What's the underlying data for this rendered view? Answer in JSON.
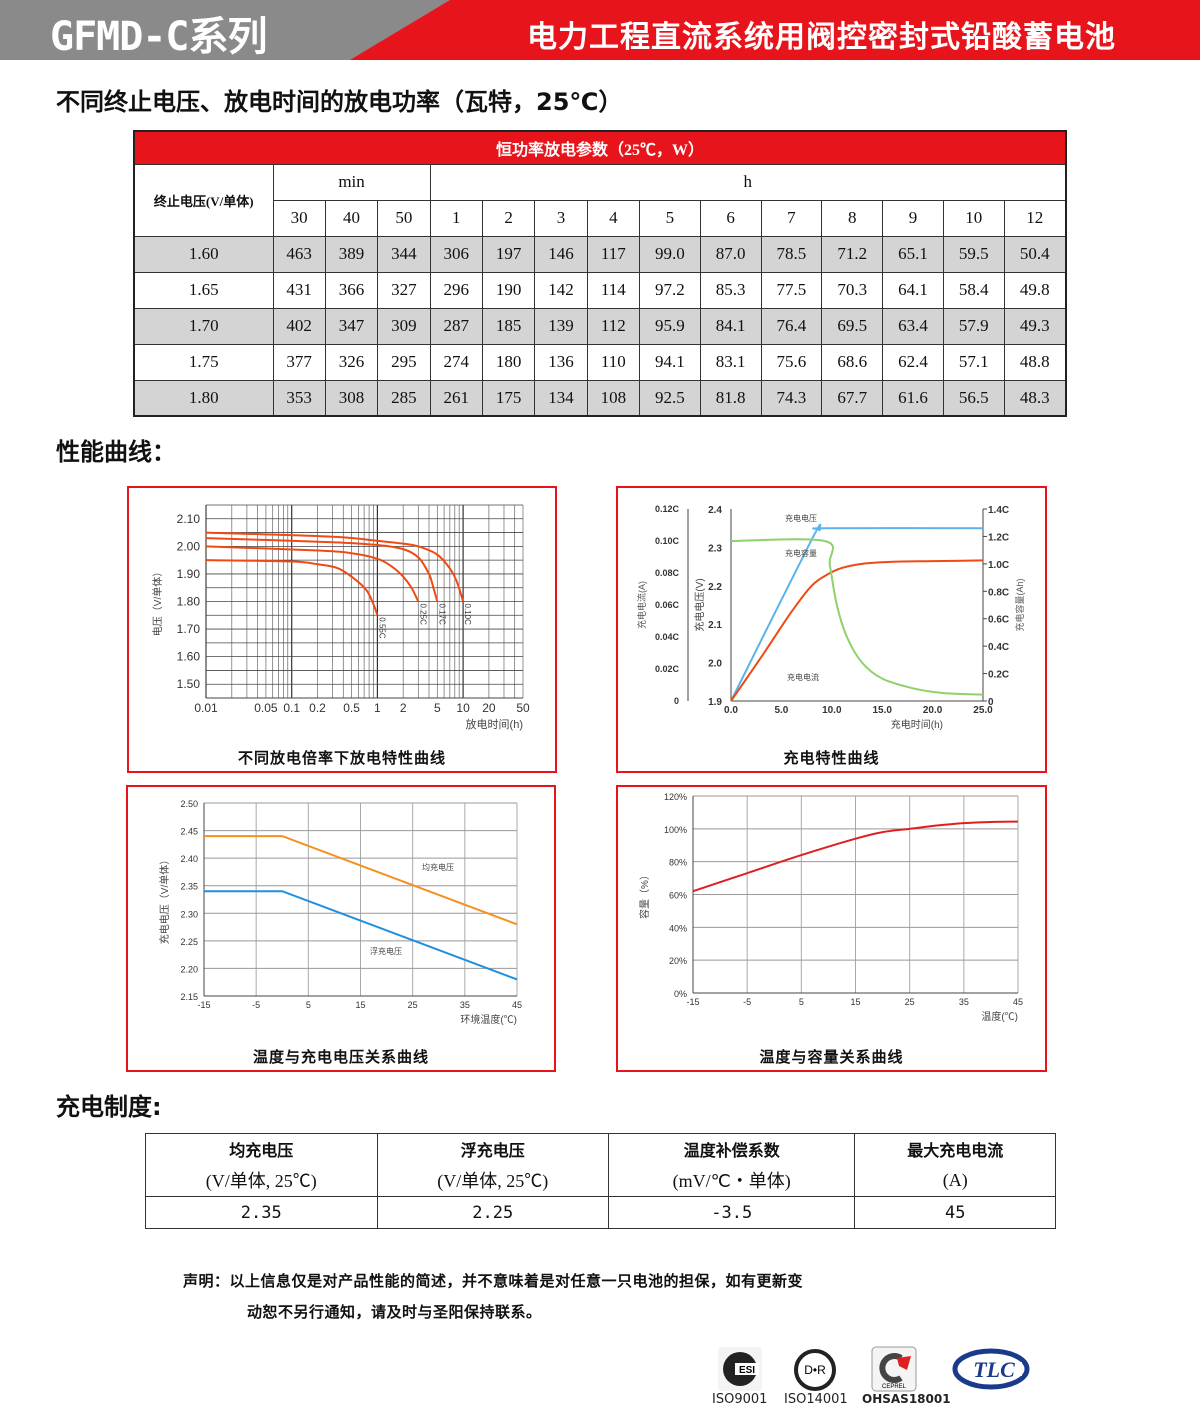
{
  "header": {
    "series": "GFMD-C系列",
    "title": "电力工程直流系统用阀控密封式铅酸蓄电池"
  },
  "power_section": {
    "title": "不同终止电压、放电时间的放电功率（瓦特，25℃）"
  },
  "power_table": {
    "caption": "恒功率放电参数（25℃，W）",
    "row_header": "终止电压(V/单体)",
    "group_min": "min",
    "group_h": "h",
    "min_cols": [
      "30",
      "40",
      "50"
    ],
    "h_cols": [
      "1",
      "2",
      "3",
      "4",
      "5",
      "6",
      "7",
      "8",
      "9",
      "10",
      "12"
    ],
    "rows": [
      {
        "voltage": "1.60",
        "values": [
          "463",
          "389",
          "344",
          "306",
          "197",
          "146",
          "117",
          "99.0",
          "87.0",
          "78.5",
          "71.2",
          "65.1",
          "59.5",
          "50.4"
        ]
      },
      {
        "voltage": "1.65",
        "values": [
          "431",
          "366",
          "327",
          "296",
          "190",
          "142",
          "114",
          "97.2",
          "85.3",
          "77.5",
          "70.3",
          "64.1",
          "58.4",
          "49.8"
        ]
      },
      {
        "voltage": "1.70",
        "values": [
          "402",
          "347",
          "309",
          "287",
          "185",
          "139",
          "112",
          "95.9",
          "84.1",
          "76.4",
          "69.5",
          "63.4",
          "57.9",
          "49.3"
        ]
      },
      {
        "voltage": "1.75",
        "values": [
          "377",
          "326",
          "295",
          "274",
          "180",
          "136",
          "110",
          "94.1",
          "83.1",
          "75.6",
          "68.6",
          "62.4",
          "57.1",
          "48.8"
        ]
      },
      {
        "voltage": "1.80",
        "values": [
          "353",
          "308",
          "285",
          "261",
          "175",
          "134",
          "108",
          "92.5",
          "81.8",
          "74.3",
          "67.7",
          "61.6",
          "56.5",
          "48.3"
        ]
      }
    ]
  },
  "curves_section": {
    "title": "性能曲线："
  },
  "chart_data": [
    {
      "type": "line",
      "title": "不同放电倍率下放电特性曲线",
      "xlabel": "放电时间(h)",
      "ylabel": "电压（V/单体）",
      "xscale": "log",
      "xlim": [
        0.01,
        50
      ],
      "ylim": [
        1.45,
        2.15
      ],
      "grid": true,
      "xticks": [
        "0.01",
        "0.05",
        "0.1",
        "0.2",
        "0.5",
        "1",
        "2",
        "5",
        "10",
        "20",
        "50"
      ],
      "xtick_values": [
        0.01,
        0.05,
        0.1,
        0.2,
        0.5,
        1,
        2,
        5,
        10,
        20,
        50
      ],
      "yticks": [
        "1.50",
        "1.60",
        "1.70",
        "1.80",
        "1.90",
        "2.00",
        "2.10"
      ],
      "ytick_values": [
        1.5,
        1.6,
        1.7,
        1.8,
        1.9,
        2.0,
        2.1
      ],
      "series": [
        {
          "name": "0.55C",
          "color": "#f04a14",
          "x": [
            0.01,
            0.1,
            0.2,
            0.35,
            0.55,
            0.75,
            0.9,
            1
          ],
          "y": [
            1.95,
            1.945,
            1.935,
            1.92,
            1.88,
            1.84,
            1.79,
            1.75
          ]
        },
        {
          "name": "0.25C",
          "color": "#f04a14",
          "x": [
            0.01,
            0.2,
            0.5,
            1,
            1.5,
            2,
            2.5,
            3
          ],
          "y": [
            2.0,
            1.985,
            1.975,
            1.955,
            1.925,
            1.89,
            1.85,
            1.8
          ]
        },
        {
          "name": "0.17C",
          "color": "#f04a14",
          "x": [
            0.01,
            0.3,
            1,
            2,
            3,
            4,
            4.5,
            5
          ],
          "y": [
            2.03,
            2.015,
            2.005,
            1.99,
            1.96,
            1.9,
            1.85,
            1.8
          ]
        },
        {
          "name": "0.10C",
          "color": "#f04a14",
          "x": [
            0.01,
            0.3,
            1,
            2,
            3,
            5,
            7,
            8.5,
            10
          ],
          "y": [
            2.05,
            2.035,
            2.02,
            2.01,
            2.0,
            1.97,
            1.92,
            1.87,
            1.8
          ]
        }
      ]
    },
    {
      "type": "line",
      "title": "充电特性曲线",
      "xlabel": "充电时间(h)",
      "ylabel": "充电电压(V)",
      "ylabel_left": "充电电流(A)",
      "ylabel_right": "充电容量(Ah)",
      "xlim": [
        0,
        25
      ],
      "ylim": [
        1.9,
        2.4
      ],
      "ylim_left": [
        0,
        0.12
      ],
      "ylim_right": [
        0,
        1.4
      ],
      "grid": false,
      "xticks": [
        "0.0",
        "5.0",
        "10.0",
        "15.0",
        "20.0",
        "25.0"
      ],
      "xtick_values": [
        0,
        5,
        10,
        15,
        20,
        25
      ],
      "yticks": [
        "1.9",
        "2.0",
        "2.1",
        "2.2",
        "2.3",
        "2.4"
      ],
      "ytick_values": [
        1.9,
        2.0,
        2.1,
        2.2,
        2.3,
        2.4
      ],
      "yticks_left": [
        "0",
        "0.02C",
        "0.04C",
        "0.06C",
        "0.08C",
        "0.10C",
        "0.12C"
      ],
      "yticks_right": [
        "0",
        "0.2C",
        "0.4C",
        "0.6C",
        "0.8C",
        "1.0C",
        "1.2C",
        "1.4C"
      ],
      "series": [
        {
          "name": "充电电压",
          "color": "#5ab4ea",
          "axis": "main",
          "x": [
            0,
            8,
            8.8,
            9.5,
            25
          ],
          "y": [
            1.9,
            2.32,
            2.345,
            2.35,
            2.35
          ]
        },
        {
          "name": "充电容量",
          "color": "#ef4a14",
          "axis": "right",
          "x": [
            0,
            3,
            6,
            8,
            9.5,
            11,
            13,
            16,
            20,
            25
          ],
          "y": [
            0,
            0.32,
            0.65,
            0.84,
            0.92,
            0.97,
            1.0,
            1.015,
            1.02,
            1.025
          ]
        },
        {
          "name": "充电电流",
          "color": "#8fd16a",
          "axis": "left",
          "x": [
            0,
            9.3,
            9.8,
            10.5,
            11.5,
            13,
            15,
            18,
            21,
            25
          ],
          "y": [
            0.1,
            0.1,
            0.085,
            0.06,
            0.04,
            0.024,
            0.014,
            0.008,
            0.005,
            0.004
          ]
        }
      ]
    },
    {
      "type": "line",
      "title": "温度与充电电压关系曲线",
      "xlabel": "环境温度(℃)",
      "ylabel": "充电电压（V/单体）",
      "xlim": [
        -15,
        45
      ],
      "ylim": [
        2.15,
        2.5
      ],
      "grid": true,
      "xticks": [
        "-15",
        "-5",
        "5",
        "15",
        "25",
        "35",
        "45"
      ],
      "xtick_values": [
        -15,
        -5,
        5,
        15,
        25,
        35,
        45
      ],
      "yticks": [
        "2.15",
        "2.20",
        "2.25",
        "2.30",
        "2.35",
        "2.40",
        "2.45",
        "2.50"
      ],
      "ytick_values": [
        2.15,
        2.2,
        2.25,
        2.3,
        2.35,
        2.4,
        2.45,
        2.5
      ],
      "series": [
        {
          "name": "均充电压",
          "color": "#f5901e",
          "x": [
            -15,
            0,
            45
          ],
          "y": [
            2.44,
            2.44,
            2.28
          ]
        },
        {
          "name": "浮充电压",
          "color": "#1f8fe0",
          "x": [
            -15,
            0,
            45
          ],
          "y": [
            2.34,
            2.34,
            2.18
          ]
        }
      ]
    },
    {
      "type": "line",
      "title": "温度与容量关系曲线",
      "xlabel": "温度(℃)",
      "ylabel": "容量（%）",
      "xlim": [
        -15,
        45
      ],
      "ylim": [
        0,
        120
      ],
      "grid": true,
      "xticks": [
        "-15",
        "-5",
        "5",
        "15",
        "25",
        "35",
        "45"
      ],
      "xtick_values": [
        -15,
        -5,
        5,
        15,
        25,
        35,
        45
      ],
      "yticks": [
        "0%",
        "20%",
        "40%",
        "60%",
        "80%",
        "100%",
        "120%"
      ],
      "ytick_values": [
        0,
        20,
        40,
        60,
        80,
        100,
        120
      ],
      "series": [
        {
          "color": "#e02020",
          "x": [
            -15,
            -5,
            5,
            15,
            20,
            25,
            30,
            35,
            40,
            45
          ],
          "y": [
            62,
            73,
            84,
            94,
            98,
            100,
            102,
            103.5,
            104.2,
            104.4
          ]
        }
      ]
    }
  ],
  "charge_section": {
    "title": "充电制度:"
  },
  "charge_table": {
    "headers": [
      [
        "均充电压",
        "(V/单体, 25℃)"
      ],
      [
        "浮充电压",
        "(V/单体, 25℃)"
      ],
      [
        "温度补偿系数",
        "(mV/℃・单体)"
      ],
      [
        "最大充电电流",
        "(A)"
      ]
    ],
    "values": [
      "2.35",
      "2.25",
      "-3.5",
      "45"
    ]
  },
  "statement": {
    "line1": "声明：以上信息仅是对产品性能的简述，并不意味着是对任意一只电池的担保，如有更新变",
    "line2": "动恕不另行通知，请及时与圣阳保持联系。"
  },
  "certs": [
    {
      "logo": "ESI",
      "label": "ISO9001"
    },
    {
      "logo": "DNR",
      "label": "ISO14001"
    },
    {
      "logo": "CEPREL",
      "label": "OHSAS18001"
    },
    {
      "logo": "TLC"
    }
  ]
}
